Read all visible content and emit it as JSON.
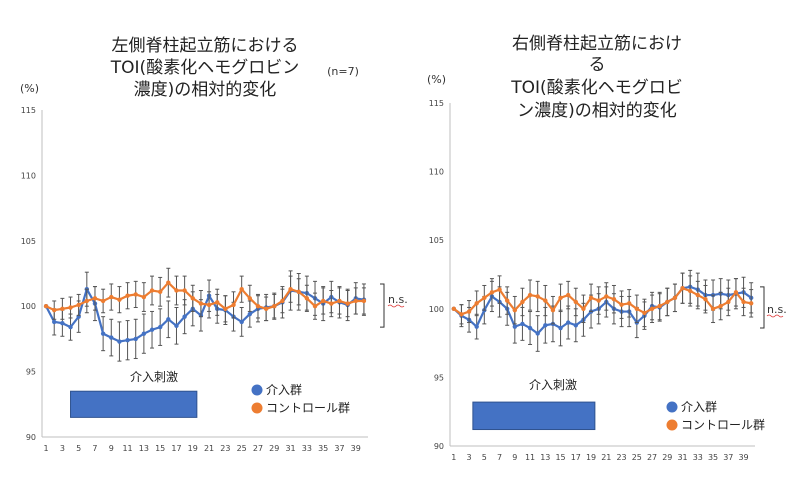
{
  "chart_data": [
    {
      "type": "line",
      "title_lines": [
        "左側脊柱起立筋における",
        "TOI(酸素化ヘモグロビン",
        "濃度)の相対的変化"
      ],
      "subtitle": "(n=7)",
      "ylabel": "(%)",
      "ylim": [
        90,
        115
      ],
      "yticks": [
        90,
        95,
        100,
        105,
        110,
        115
      ],
      "x": [
        1,
        2,
        3,
        4,
        5,
        6,
        7,
        8,
        9,
        10,
        11,
        12,
        13,
        14,
        15,
        16,
        17,
        18,
        19,
        20,
        21,
        22,
        23,
        24,
        25,
        26,
        27,
        28,
        29,
        30,
        31,
        32,
        33,
        34,
        35,
        36,
        37,
        38,
        39,
        40
      ],
      "xticks": [
        1,
        3,
        5,
        7,
        9,
        11,
        13,
        15,
        17,
        19,
        21,
        23,
        25,
        27,
        29,
        31,
        33,
        35,
        37,
        39
      ],
      "stimulus_label": "介入刺激",
      "stimulus_range": [
        4,
        19.5
      ],
      "stimulus_y": [
        91.5,
        93.5
      ],
      "significance": "n.s.",
      "legend_position": "bottom-right",
      "series": [
        {
          "name": "介入群",
          "color": "#4472C4",
          "values": [
            100,
            98.8,
            98.7,
            98.4,
            99.2,
            101.3,
            100.2,
            97.9,
            97.6,
            97.3,
            97.4,
            97.5,
            97.9,
            98.2,
            98.4,
            99.0,
            98.5,
            99.2,
            99.8,
            99.3,
            100.8,
            99.8,
            99.7,
            99.2,
            98.8,
            99.4,
            99.8,
            99.9,
            100.0,
            100.3,
            101.2,
            101.1,
            101.0,
            100.6,
            100.2,
            100.7,
            100.3,
            100.1,
            100.6,
            100.5
          ],
          "error": [
            0,
            1.0,
            1.0,
            1.0,
            1.2,
            1.3,
            1.3,
            1.3,
            1.4,
            1.5,
            1.5,
            1.5,
            1.5,
            1.4,
            1.4,
            1.4,
            1.4,
            1.3,
            1.3,
            1.2,
            1.2,
            1.1,
            1.1,
            1.1,
            1.1,
            1.0,
            1.0,
            1.0,
            1.0,
            1.2,
            1.5,
            1.4,
            1.3,
            1.3,
            1.3,
            1.2,
            1.2,
            1.2,
            1.2,
            1.2
          ]
        },
        {
          "name": "コントロール群",
          "color": "#ED7D31",
          "values": [
            100,
            99.7,
            99.8,
            99.9,
            100.1,
            100.4,
            100.6,
            100.4,
            100.7,
            100.5,
            100.8,
            100.9,
            100.7,
            101.2,
            101.1,
            101.8,
            101.2,
            101.2,
            100.6,
            100.2,
            100.1,
            100.3,
            99.8,
            100.1,
            101.3,
            100.6,
            100.0,
            99.8,
            100.0,
            100.4,
            101.3,
            101.1,
            100.6,
            100.0,
            100.4,
            100.2,
            100.4,
            100.2,
            100.4,
            100.4
          ],
          "error": [
            0,
            0.7,
            0.8,
            0.8,
            0.8,
            0.9,
            0.9,
            0.9,
            1.0,
            1.0,
            1.0,
            1.0,
            1.1,
            1.1,
            1.1,
            1.1,
            1.1,
            1.1,
            1.0,
            1.0,
            1.0,
            1.0,
            1.0,
            1.0,
            1.0,
            1.0,
            0.9,
            0.9,
            0.9,
            0.9,
            1.0,
            1.0,
            1.0,
            1.0,
            1.0,
            1.0,
            1.0,
            1.0,
            1.0,
            1.0
          ]
        }
      ]
    },
    {
      "type": "line",
      "title_lines": [
        "右側脊柱起立筋におけ",
        "る",
        "TOI(酸素化ヘモグロビ",
        "ン濃度)の相対的変化"
      ],
      "subtitle": "",
      "ylabel": "(%)",
      "ylim": [
        90,
        115
      ],
      "yticks": [
        90,
        95,
        100,
        105,
        110,
        115
      ],
      "x": [
        1,
        2,
        3,
        4,
        5,
        6,
        7,
        8,
        9,
        10,
        11,
        12,
        13,
        14,
        15,
        16,
        17,
        18,
        19,
        20,
        21,
        22,
        23,
        24,
        25,
        26,
        27,
        28,
        29,
        30,
        31,
        32,
        33,
        34,
        35,
        36,
        37,
        38,
        39,
        40
      ],
      "xticks": [
        1,
        3,
        5,
        7,
        9,
        11,
        13,
        15,
        17,
        19,
        21,
        23,
        25,
        27,
        29,
        31,
        33,
        35,
        37,
        39
      ],
      "stimulus_label": "介入刺激",
      "stimulus_range": [
        3.5,
        19.5
      ],
      "stimulus_y": [
        91.2,
        93.2
      ],
      "significance": "n.s.",
      "legend_position": "bottom-right",
      "series": [
        {
          "name": "介入群",
          "color": "#4472C4",
          "values": [
            100,
            99.5,
            99.2,
            98.7,
            99.9,
            100.9,
            100.5,
            100.0,
            98.7,
            98.9,
            98.6,
            98.2,
            98.8,
            98.9,
            98.6,
            99.0,
            98.8,
            99.2,
            99.8,
            100.0,
            100.5,
            100.0,
            99.8,
            99.8,
            99.0,
            99.5,
            100.2,
            100.1,
            100.5,
            100.8,
            101.5,
            101.6,
            101.4,
            101.0,
            101.0,
            101.1,
            101.0,
            101.1,
            101.2,
            100.8
          ],
          "error": [
            0,
            0.8,
            0.9,
            0.9,
            1.0,
            1.1,
            1.1,
            1.2,
            1.2,
            1.2,
            1.2,
            1.3,
            1.3,
            1.3,
            1.3,
            1.2,
            1.2,
            1.2,
            1.2,
            1.1,
            1.1,
            1.1,
            1.1,
            1.1,
            1.1,
            1.0,
            1.0,
            1.0,
            1.0,
            1.0,
            1.1,
            1.2,
            1.2,
            1.1,
            1.1,
            1.1,
            1.1,
            1.1,
            1.1,
            1.1
          ]
        },
        {
          "name": "コントロール群",
          "color": "#ED7D31",
          "values": [
            100,
            99.6,
            99.8,
            100.4,
            100.8,
            101.2,
            101.4,
            100.6,
            99.9,
            100.5,
            101.0,
            100.9,
            100.6,
            99.9,
            100.8,
            101.0,
            100.5,
            100.0,
            100.8,
            100.6,
            100.9,
            100.7,
            100.3,
            100.4,
            100.0,
            99.7,
            100.0,
            100.2,
            100.5,
            100.8,
            101.5,
            101.3,
            101.0,
            100.7,
            100.0,
            100.2,
            100.5,
            101.2,
            100.5,
            100.4
          ],
          "error": [
            0,
            0.7,
            0.8,
            0.9,
            0.9,
            1.0,
            1.0,
            1.0,
            1.0,
            1.0,
            1.1,
            1.1,
            1.1,
            1.0,
            1.0,
            1.0,
            1.0,
            1.0,
            1.0,
            1.0,
            1.0,
            1.0,
            1.0,
            1.0,
            1.0,
            1.0,
            1.0,
            1.0,
            1.0,
            1.0,
            1.1,
            1.1,
            1.0,
            1.0,
            1.0,
            1.0,
            1.0,
            1.0,
            1.0,
            1.0
          ]
        }
      ]
    }
  ]
}
